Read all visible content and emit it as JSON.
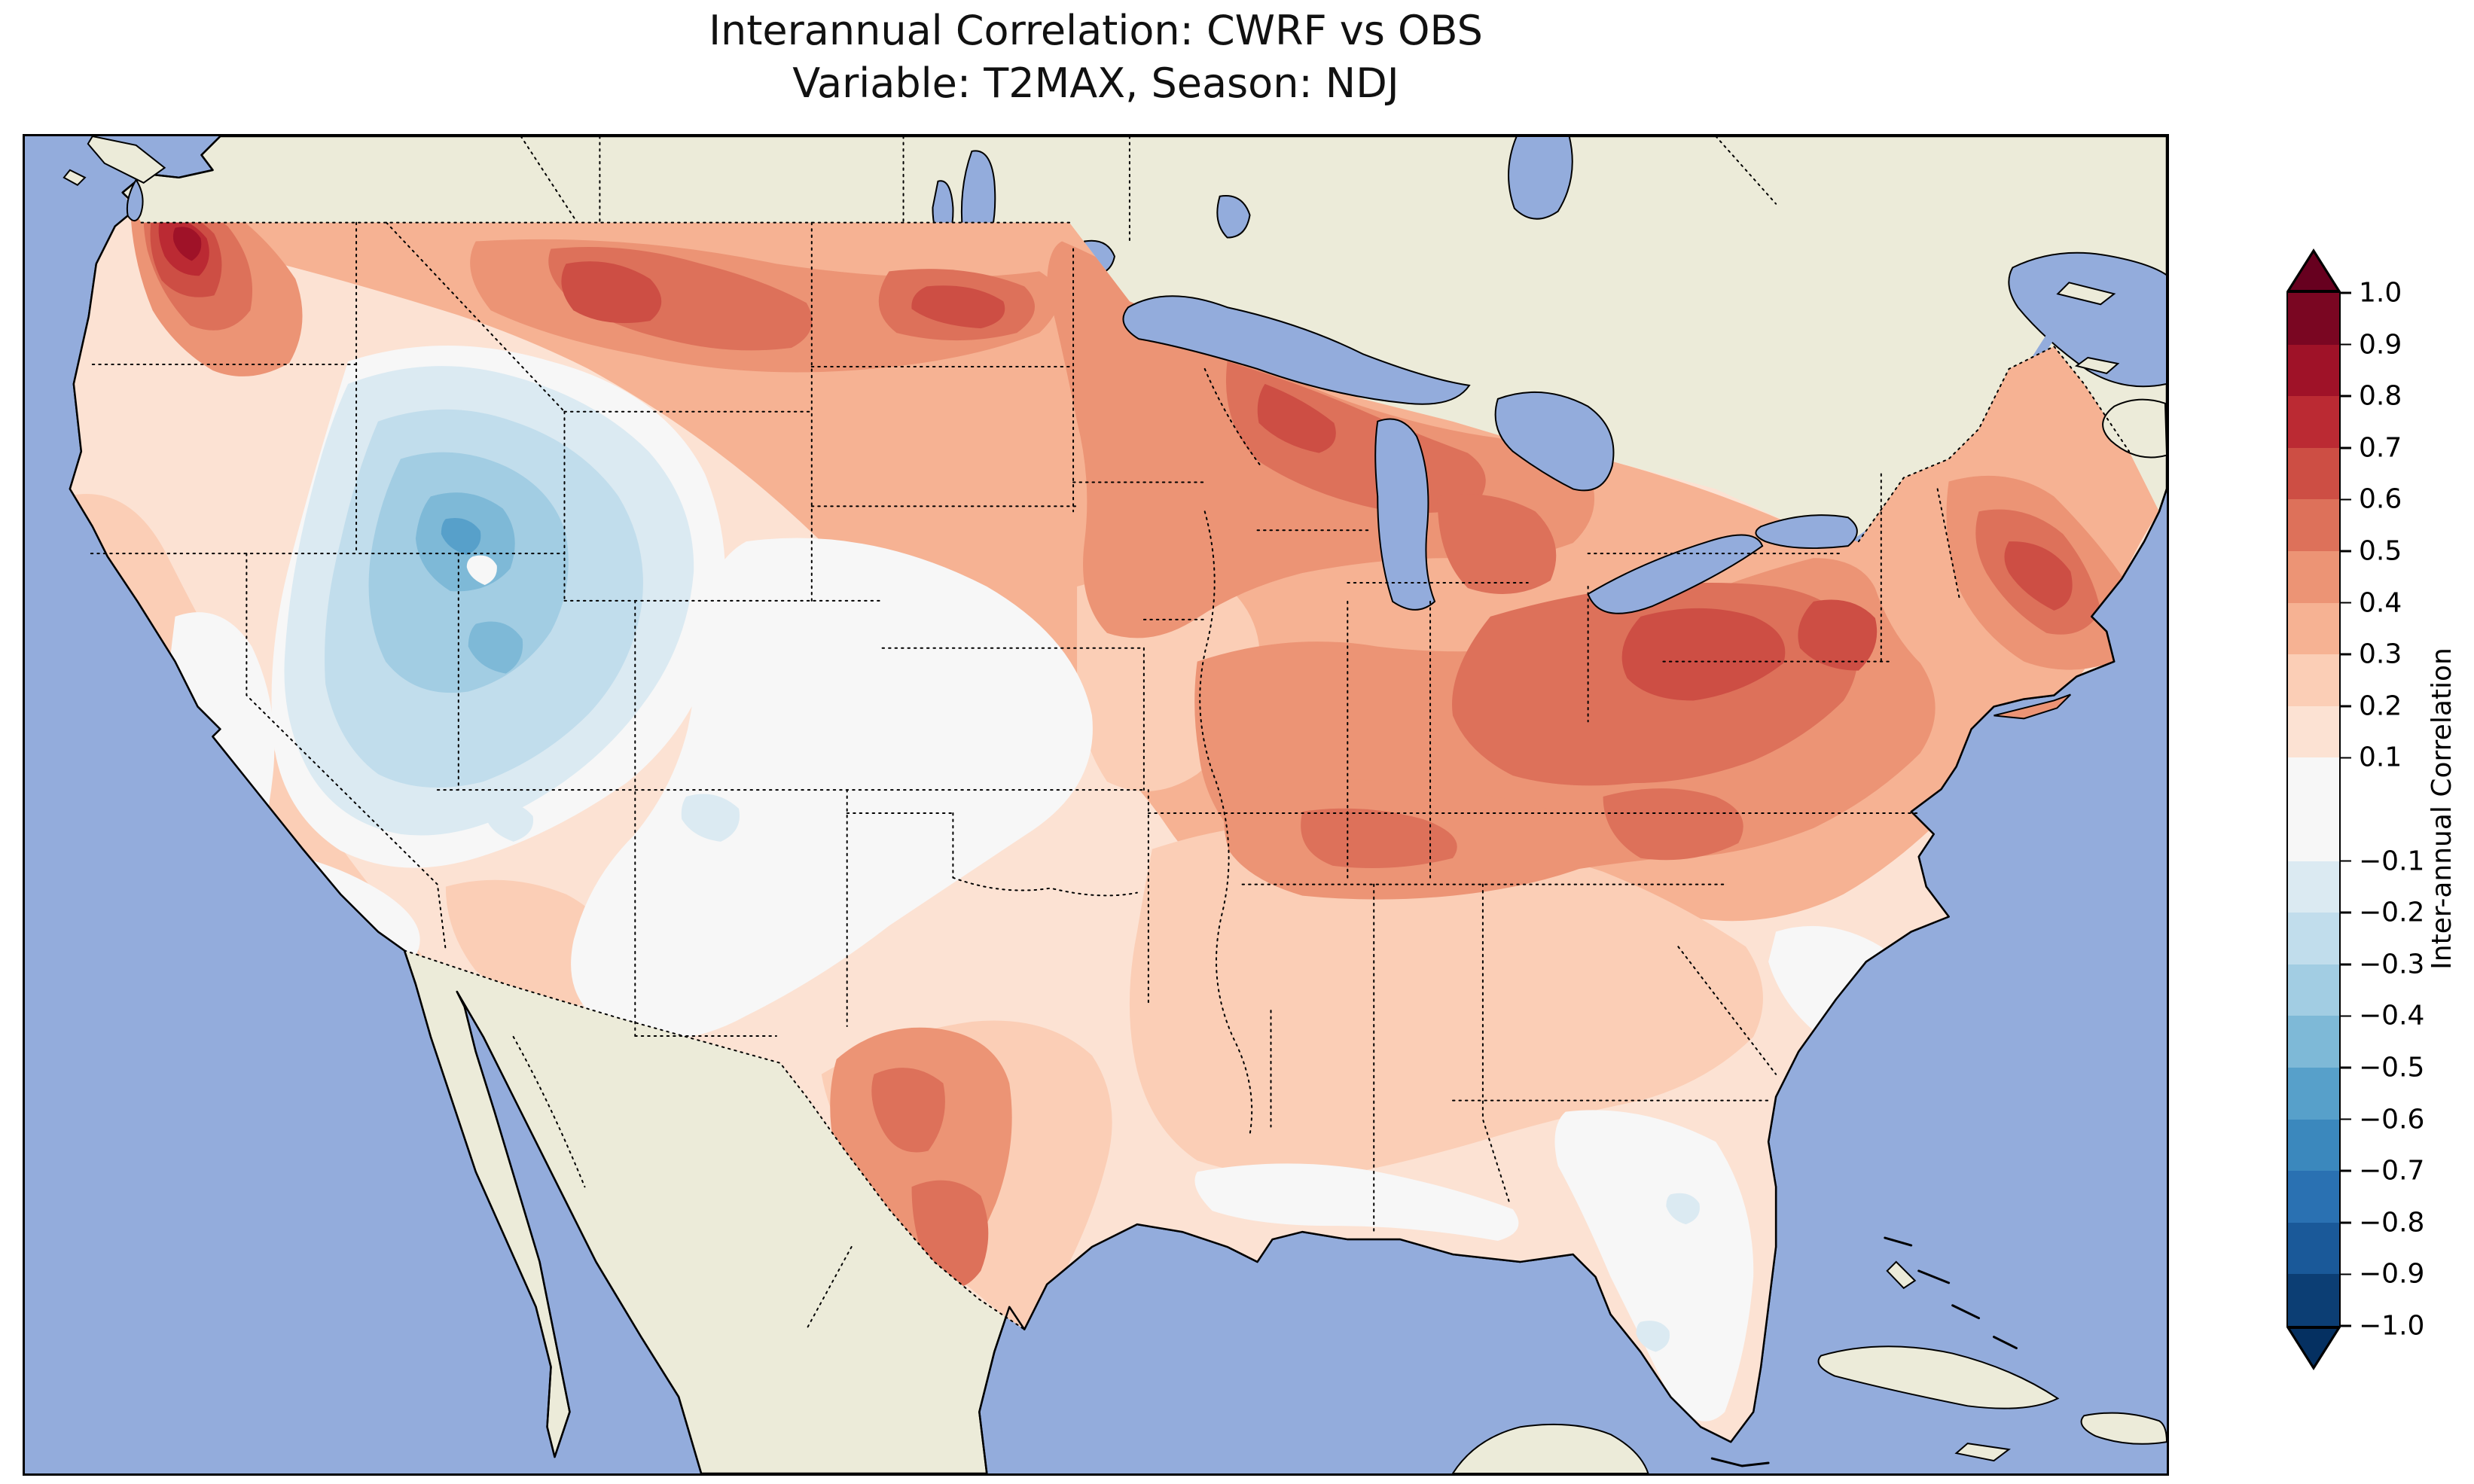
{
  "title": {
    "line1": "Interannual Correlation: CWRF vs OBS",
    "line2": "Variable: T2MAX, Season: NDJ"
  },
  "map": {
    "ocean_color": "#93acdc",
    "land_color": "#ecebd9",
    "coastline_color": "#000000",
    "border_style": "dotted",
    "palette": {
      "p08": "#9f1228",
      "p07": "#bb2a33",
      "p06": "#cd4e44",
      "p05": "#dd715a",
      "p04": "#ec9475",
      "p03": "#f6b293",
      "p02": "#fbceb6",
      "p01": "#fce2d3",
      "zero": "#f7f7f7",
      "m01": "#dbeaf2",
      "m02": "#c1ddec",
      "m03": "#a2cde3",
      "m04": "#7eb9d7",
      "m05": "#57a0ca"
    }
  },
  "colorbar": {
    "label": "Inter-annual Correlation",
    "over_color": "#67001f",
    "under_color": "#053061",
    "outline_color": "#000000",
    "ticks": [
      {
        "value": 1.0,
        "label": "1.0"
      },
      {
        "value": 0.9,
        "label": "0.9"
      },
      {
        "value": 0.8,
        "label": "0.8"
      },
      {
        "value": 0.7,
        "label": "0.7"
      },
      {
        "value": 0.6,
        "label": "0.6"
      },
      {
        "value": 0.5,
        "label": "0.5"
      },
      {
        "value": 0.4,
        "label": "0.4"
      },
      {
        "value": 0.3,
        "label": "0.3"
      },
      {
        "value": 0.2,
        "label": "0.2"
      },
      {
        "value": 0.1,
        "label": "0.1"
      },
      {
        "value": -0.1,
        "label": "−0.1"
      },
      {
        "value": -0.2,
        "label": "−0.2"
      },
      {
        "value": -0.3,
        "label": "−0.3"
      },
      {
        "value": -0.4,
        "label": "−0.4"
      },
      {
        "value": -0.5,
        "label": "−0.5"
      },
      {
        "value": -0.6,
        "label": "−0.6"
      },
      {
        "value": -0.7,
        "label": "−0.7"
      },
      {
        "value": -0.8,
        "label": "−0.8"
      },
      {
        "value": -0.9,
        "label": "−0.9"
      },
      {
        "value": -1.0,
        "label": "−1.0"
      }
    ],
    "bands": [
      {
        "from": 1.0,
        "to": 0.9,
        "color": "#7a0622"
      },
      {
        "from": 0.9,
        "to": 0.8,
        "color": "#9f1228"
      },
      {
        "from": 0.8,
        "to": 0.7,
        "color": "#bb2a33"
      },
      {
        "from": 0.7,
        "to": 0.6,
        "color": "#cd4e44"
      },
      {
        "from": 0.6,
        "to": 0.5,
        "color": "#dd715a"
      },
      {
        "from": 0.5,
        "to": 0.4,
        "color": "#ec9475"
      },
      {
        "from": 0.4,
        "to": 0.3,
        "color": "#f6b293"
      },
      {
        "from": 0.3,
        "to": 0.2,
        "color": "#fbceb6"
      },
      {
        "from": 0.2,
        "to": 0.1,
        "color": "#fce2d3"
      },
      {
        "from": 0.1,
        "to": -0.1,
        "color": "#f7f7f7"
      },
      {
        "from": -0.1,
        "to": -0.2,
        "color": "#dbeaf2"
      },
      {
        "from": -0.2,
        "to": -0.3,
        "color": "#c1ddec"
      },
      {
        "from": -0.3,
        "to": -0.4,
        "color": "#a2cde3"
      },
      {
        "from": -0.4,
        "to": -0.5,
        "color": "#7eb9d7"
      },
      {
        "from": -0.5,
        "to": -0.6,
        "color": "#57a0ca"
      },
      {
        "from": -0.6,
        "to": -0.7,
        "color": "#3b88bd"
      },
      {
        "from": -0.7,
        "to": -0.8,
        "color": "#2a71b2"
      },
      {
        "from": -0.8,
        "to": -0.9,
        "color": "#1a5999"
      },
      {
        "from": -0.9,
        "to": -1.0,
        "color": "#0c3e74"
      }
    ]
  },
  "chart_data": {
    "type": "heatmap",
    "title": "Interannual Correlation: CWRF vs OBS",
    "subtitle": "Variable: T2MAX, Season: NDJ",
    "comparison": "CWRF vs OBS",
    "variable": "T2MAX",
    "season": "NDJ",
    "colorbar_label": "Inter-annual Correlation",
    "colormap": "RdBu_r (red = positive correlation, blue = negative correlation)",
    "value_range": [
      -1.0,
      1.0
    ],
    "contour_interval": 0.1,
    "colorbar_ticks": [
      "1.0",
      "0.9",
      "0.8",
      "0.7",
      "0.6",
      "0.5",
      "0.4",
      "0.3",
      "0.2",
      "0.1",
      "−0.1",
      "−0.2",
      "−0.3",
      "−0.4",
      "−0.5",
      "−0.6",
      "−0.7",
      "−0.8",
      "−0.9",
      "−1.0"
    ],
    "map_extent": "Continental United States with surrounding southern Canada, northern Mexico, Pacific, Atlantic and Gulf of Mexico",
    "regions": [
      {
        "region": "Pacific Northwest coast (western Washington)",
        "correlation": "0.6 to 0.9"
      },
      {
        "region": "Cascades / inland Pacific Northwest",
        "correlation": "0.4 to 0.7"
      },
      {
        "region": "Northern border band (Montana, North Dakota)",
        "correlation": "0.4 to 0.7"
      },
      {
        "region": "Upper Midwest / Great Lakes (MN, WI, MI)",
        "correlation": "0.4 to 0.6"
      },
      {
        "region": "Ohio Valley and Northeast (OH, PA, NY, New England)",
        "correlation": "0.4 to 0.7"
      },
      {
        "region": "Great Basin and central Rockies (NV, UT, ID, WY, western CO)",
        "correlation": "-0.2 to -0.5"
      },
      {
        "region": "California coast",
        "correlation": "0.1 to 0.3"
      },
      {
        "region": "California Central Valley and Southwest (AZ, NM)",
        "correlation": "-0.1 to 0.1"
      },
      {
        "region": "Central Plains (NE, KS, OK, eastern CO)",
        "correlation": "-0.1 to 0.1"
      },
      {
        "region": "Texas (west and south along Rio Grande)",
        "correlation": "0.3 to 0.5"
      },
      {
        "region": "Mid-South and Southeast interior (TN, KY, AR, GA, AL)",
        "correlation": "0.2 to 0.5"
      },
      {
        "region": "Gulf Coast and Florida peninsula",
        "correlation": "-0.1 to 0.2"
      },
      {
        "region": "Atlantic coastal Carolinas",
        "correlation": "0.0 to 0.2"
      }
    ]
  }
}
